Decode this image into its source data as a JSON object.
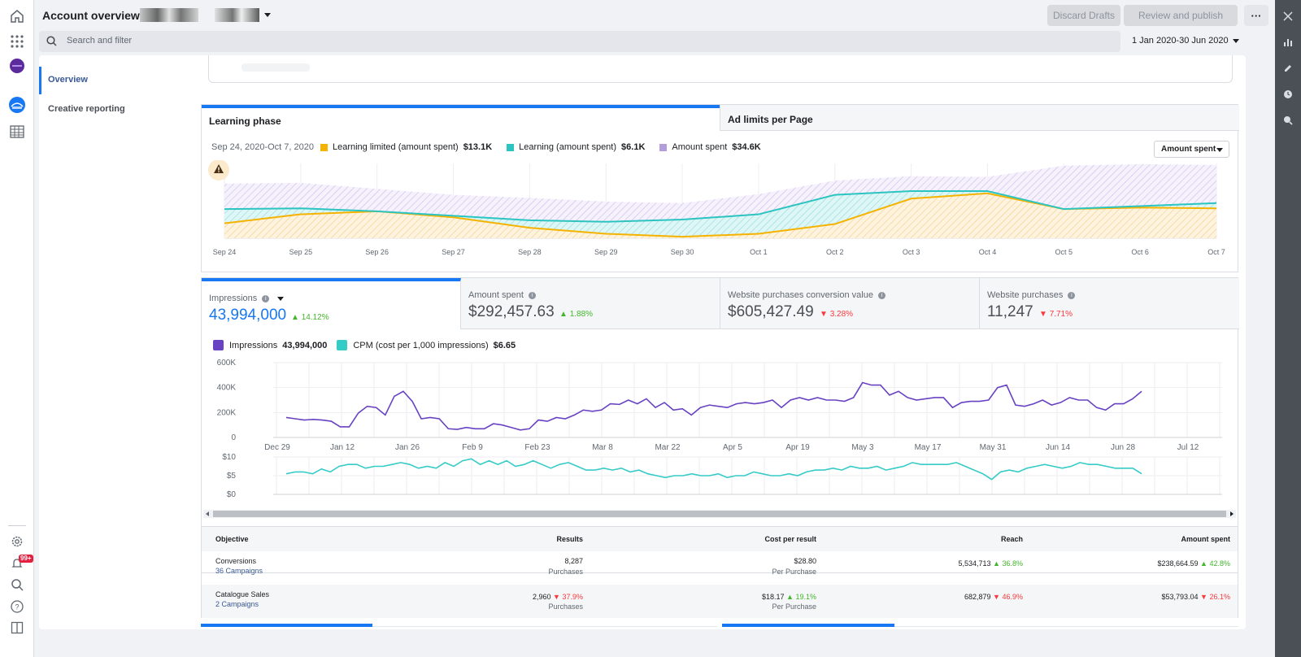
{
  "colors": {
    "accent": "#1877f2",
    "learning_limited": "#f5b301",
    "learning": "#2bc4c1",
    "amount_spent": "#b39ddb",
    "impressions": "#6842c2",
    "cpm": "#35cbc7",
    "up": "#42b72a",
    "down": "#fa383e"
  },
  "header": {
    "title": "Account overview",
    "discard_label": "Discard Drafts",
    "review_label": "Review and publish",
    "more_label": "···",
    "search_placeholder": "Search and filter",
    "date_range": "1 Jan 2020-30 Jun 2020"
  },
  "rail": {
    "icons": [
      "home-icon",
      "apps-grid-icon",
      "account-avatar-icon",
      "ads-manager-icon",
      "table-icon",
      "settings-icon",
      "notifications-icon",
      "search-icon",
      "help-icon",
      "panel-toggle-icon"
    ],
    "notification_badge": "99+"
  },
  "right_rail": {
    "icons": [
      "close-icon",
      "chart-icon",
      "edit-icon",
      "history-icon",
      "search-zoom-icon"
    ]
  },
  "sidebar": {
    "items": [
      {
        "label": "Overview",
        "active": true
      },
      {
        "label": "Creative reporting",
        "active": false
      }
    ]
  },
  "learning_phase": {
    "tabs": [
      "Learning phase",
      "Ad limits per Page"
    ],
    "date_range": "Sep 24, 2020-Oct 7, 2020",
    "legend": [
      {
        "label": "Learning limited (amount spent)",
        "value": "$13.1K"
      },
      {
        "label": "Learning (amount spent)",
        "value": "$6.1K"
      },
      {
        "label": "Amount spent",
        "value": "$34.6K"
      }
    ],
    "dropdown": "Amount spent"
  },
  "metric_tabs": [
    {
      "label": "Impressions",
      "value": "43,994,000",
      "change": "14.12%",
      "direction": "up"
    },
    {
      "label": "Amount spent",
      "value": "$292,457.63",
      "change": "1.88%",
      "direction": "up"
    },
    {
      "label": "Website purchases conversion value",
      "value": "$605,427.49",
      "change": "3.28%",
      "direction": "down"
    },
    {
      "label": "Website purchases",
      "value": "11,247",
      "change": "7.71%",
      "direction": "down"
    }
  ],
  "metric_legend": [
    {
      "label": "Impressions",
      "value": "43,994,000"
    },
    {
      "label": "CPM (cost per 1,000 impressions)",
      "value": "$6.65"
    }
  ],
  "table": {
    "headers": [
      "Objective",
      "Results",
      "Cost per result",
      "Reach",
      "Amount spent"
    ],
    "rows": [
      {
        "objective": "Conversions",
        "campaigns": "36 Campaigns",
        "results": "8,287",
        "results_sub": "Purchases",
        "cost": "$28.80",
        "cost_sub": "Per Purchase",
        "reach": "5,534,713",
        "reach_chg": "36.8%",
        "reach_dir": "up",
        "spent": "$238,664.59",
        "spent_chg": "42.8%",
        "spent_dir": "up"
      },
      {
        "objective": "Catalogue Sales",
        "campaigns": "2 Campaigns",
        "results": "2,960",
        "results_chg": "37.9%",
        "results_dir": "down",
        "results_sub": "Purchases",
        "cost": "$18.17",
        "cost_chg": "19.1%",
        "cost_dir": "up",
        "cost_sub": "Per Purchase",
        "reach": "682,879",
        "reach_chg": "46.9%",
        "reach_dir": "down",
        "spent": "$53,793.04",
        "spent_chg": "26.1%",
        "spent_dir": "down"
      }
    ]
  },
  "chart_data": [
    {
      "type": "area",
      "title": "",
      "x": [
        "Sep 24",
        "Sep 25",
        "Sep 26",
        "Sep 27",
        "Sep 28",
        "Sep 29",
        "Sep 30",
        "Oct 1",
        "Oct 2",
        "Oct 3",
        "Oct 4",
        "Oct 5",
        "Oct 6",
        "Oct 7"
      ],
      "ylim": [
        0,
        100
      ],
      "grid": true,
      "series": [
        {
          "name": "Amount spent",
          "values": [
            73,
            74,
            66,
            58,
            54,
            49,
            47,
            59,
            77,
            83,
            82,
            97,
            99,
            98
          ]
        },
        {
          "name": "Learning (amount spent)",
          "values": [
            39,
            40,
            36,
            30,
            24,
            22,
            25,
            32,
            58,
            63,
            63,
            39,
            43,
            47
          ]
        },
        {
          "name": "Learning limited (amount spent)",
          "values": [
            20,
            32,
            36,
            28,
            14,
            6,
            2,
            6,
            19,
            53,
            60,
            39,
            41,
            40
          ]
        }
      ]
    },
    {
      "type": "line",
      "x_ticks": [
        "Dec 29",
        "Jan 12",
        "Jan 26",
        "Feb 9",
        "Feb 23",
        "Mar 8",
        "Mar 22",
        "Apr 5",
        "Apr 19",
        "May 3",
        "May 17",
        "May 31",
        "Jun 14",
        "Jun 28",
        "Jul 12"
      ],
      "y_ticks": [
        "600K",
        "400K",
        "200K",
        "0"
      ],
      "ylim": [
        0,
        600000
      ],
      "series": [
        {
          "name": "Impressions",
          "values": [
            160000,
            150000,
            140000,
            145000,
            140000,
            130000,
            85000,
            85000,
            195000,
            250000,
            240000,
            180000,
            330000,
            370000,
            290000,
            150000,
            160000,
            150000,
            70000,
            65000,
            80000,
            70000,
            70000,
            110000,
            100000,
            80000,
            60000,
            70000,
            140000,
            130000,
            160000,
            150000,
            180000,
            220000,
            210000,
            220000,
            270000,
            265000,
            300000,
            270000,
            310000,
            240000,
            280000,
            220000,
            230000,
            180000,
            240000,
            260000,
            250000,
            240000,
            270000,
            280000,
            270000,
            280000,
            300000,
            240000,
            300000,
            320000,
            300000,
            320000,
            300000,
            300000,
            290000,
            320000,
            440000,
            420000,
            420000,
            340000,
            370000,
            320000,
            300000,
            310000,
            320000,
            320000,
            240000,
            280000,
            290000,
            290000,
            300000,
            400000,
            420000,
            260000,
            250000,
            270000,
            300000,
            260000,
            280000,
            320000,
            300000,
            300000,
            240000,
            220000,
            270000,
            270000,
            310000,
            370000
          ]
        },
        {
          "name": "CPM (cost per 1,000 impressions)",
          "values": [
            5.5,
            6,
            6,
            5.5,
            6.8,
            6,
            7.5,
            8,
            8,
            7,
            7.5,
            7.5,
            8,
            8.5,
            8,
            7,
            7.5,
            7,
            8.5,
            7.5,
            9,
            9.5,
            8,
            9,
            8,
            9,
            7.5,
            8,
            9,
            8,
            7,
            8,
            8.5,
            7.5,
            6.5,
            6.5,
            7,
            6.5,
            7,
            6,
            6.5,
            5.5,
            5,
            4.5,
            5,
            5,
            5.5,
            5,
            5,
            5.5,
            4.5,
            5,
            5,
            6,
            5.5,
            5,
            5,
            5.5,
            5,
            6,
            6.5,
            6.5,
            7,
            6.5,
            7.5,
            7,
            7,
            7.5,
            6.5,
            7,
            7.5,
            8.5,
            8,
            8,
            8,
            8,
            8.5,
            7.5,
            6.5,
            5.5,
            4,
            6,
            6.5,
            6,
            7,
            7.5,
            8,
            7.5,
            7,
            7.5,
            8.5,
            8,
            8,
            7.5,
            7,
            7,
            7,
            5.5
          ]
        }
      ],
      "cpm_ticks": [
        "$10",
        "$5",
        "$0"
      ],
      "cpm_ylim": [
        0,
        10
      ]
    }
  ]
}
